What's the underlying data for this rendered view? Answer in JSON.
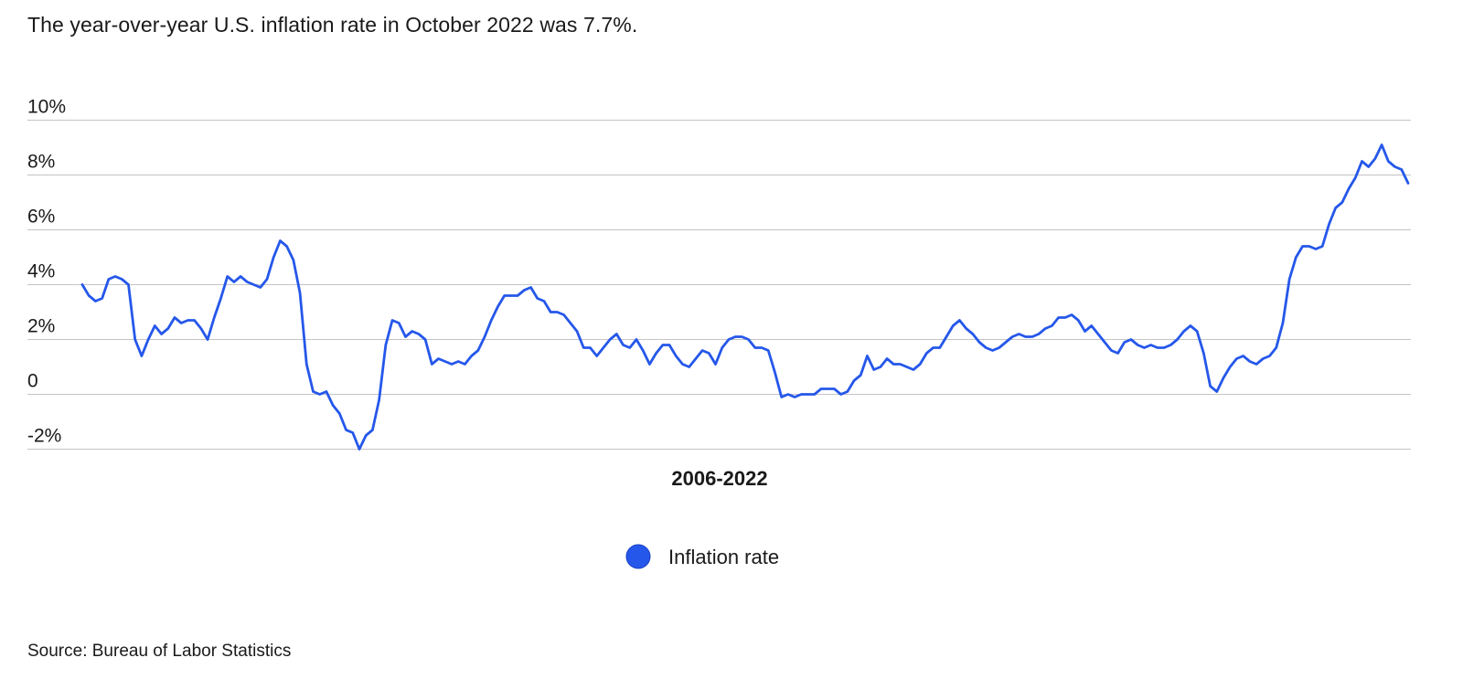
{
  "title": "The year-over-year U.S. inflation rate in October 2022 was 7.7%.",
  "source": "Source: Bureau of Labor Statistics",
  "colors": {
    "series": "#2557ea",
    "grid": "#c4c4c4",
    "text": "#1a1a1a"
  },
  "chart_data": {
    "type": "line",
    "xlabel": "2006-2022",
    "ylabel": "",
    "ylim": [
      -2,
      10
    ],
    "yticks": [
      {
        "value": 10,
        "label": "10%"
      },
      {
        "value": 8,
        "label": "8%"
      },
      {
        "value": 6,
        "label": "6%"
      },
      {
        "value": 4,
        "label": "4%"
      },
      {
        "value": 2,
        "label": "2%"
      },
      {
        "value": 0,
        "label": "0"
      },
      {
        "value": -2,
        "label": "-2%"
      }
    ],
    "grid": true,
    "legend_position": "bottom-center",
    "series": [
      {
        "name": "Inflation rate",
        "color": "#2557ea",
        "x_range": [
          "2006-01",
          "2022-10"
        ],
        "frequency": "monthly",
        "values": [
          4.0,
          3.6,
          3.4,
          3.5,
          4.2,
          4.3,
          4.2,
          4.0,
          2.0,
          1.4,
          2.0,
          2.5,
          2.2,
          2.4,
          2.8,
          2.6,
          2.7,
          2.7,
          2.4,
          2.0,
          2.8,
          3.5,
          4.3,
          4.1,
          4.3,
          4.1,
          4.0,
          3.9,
          4.2,
          5.0,
          5.6,
          5.4,
          4.9,
          3.7,
          1.1,
          0.1,
          0.0,
          0.1,
          -0.4,
          -0.7,
          -1.3,
          -1.4,
          -2.0,
          -1.5,
          -1.3,
          -0.2,
          1.8,
          2.7,
          2.6,
          2.1,
          2.3,
          2.2,
          2.0,
          1.1,
          1.3,
          1.2,
          1.1,
          1.2,
          1.1,
          1.4,
          1.6,
          2.1,
          2.7,
          3.2,
          3.6,
          3.6,
          3.6,
          3.8,
          3.9,
          3.5,
          3.4,
          3.0,
          3.0,
          2.9,
          2.6,
          2.3,
          1.7,
          1.7,
          1.4,
          1.7,
          2.0,
          2.2,
          1.8,
          1.7,
          2.0,
          1.6,
          1.1,
          1.5,
          1.8,
          1.8,
          1.4,
          1.1,
          1.0,
          1.3,
          1.6,
          1.5,
          1.1,
          1.7,
          2.0,
          2.1,
          2.1,
          2.0,
          1.7,
          1.7,
          1.6,
          0.8,
          -0.1,
          0.0,
          -0.1,
          0.0,
          0.0,
          0.0,
          0.2,
          0.2,
          0.2,
          0.0,
          0.1,
          0.5,
          0.7,
          1.4,
          0.9,
          1.0,
          1.3,
          1.1,
          1.1,
          1.0,
          0.9,
          1.1,
          1.5,
          1.7,
          1.7,
          2.1,
          2.5,
          2.7,
          2.4,
          2.2,
          1.9,
          1.7,
          1.6,
          1.7,
          1.9,
          2.1,
          2.2,
          2.1,
          2.1,
          2.2,
          2.4,
          2.5,
          2.8,
          2.8,
          2.9,
          2.7,
          2.3,
          2.5,
          2.2,
          1.9,
          1.6,
          1.5,
          1.9,
          2.0,
          1.8,
          1.7,
          1.8,
          1.7,
          1.7,
          1.8,
          2.0,
          2.3,
          2.5,
          2.3,
          1.5,
          0.3,
          0.1,
          0.6,
          1.0,
          1.3,
          1.4,
          1.2,
          1.1,
          1.3,
          1.4,
          1.7,
          2.6,
          4.2,
          5.0,
          5.4,
          5.4,
          5.3,
          5.4,
          6.2,
          6.8,
          7.0,
          7.5,
          7.9,
          8.5,
          8.3,
          8.6,
          9.1,
          8.5,
          8.3,
          8.2,
          7.7
        ]
      }
    ]
  }
}
